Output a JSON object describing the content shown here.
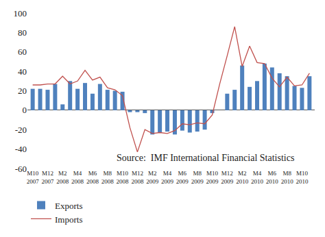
{
  "chart_data": {
    "type": "bar",
    "categories": [
      "M10 2007",
      null,
      "M12 2007",
      null,
      "M2 2008",
      null,
      "M4 2008",
      null,
      "M6 2008",
      null,
      "M8 2008",
      null,
      "M10 2008",
      null,
      "M12 2008",
      null,
      "M2 2009",
      null,
      "M4 2009",
      null,
      "M6 2009",
      null,
      "M8 2009",
      null,
      "M10 2009",
      null,
      "M12 2009",
      null,
      "M2 2010",
      null,
      "M4 2010",
      null,
      "M6 2010",
      null,
      "M8 2010",
      null,
      "M10 2010",
      null
    ],
    "series": [
      {
        "name": "Exports",
        "type": "bar",
        "color": "#4f81bd",
        "values": [
          22,
          22,
          21,
          27,
          6,
          30,
          22,
          28,
          17,
          27,
          21,
          20,
          19,
          -2,
          -2,
          -3,
          -25,
          -23,
          -22,
          -25,
          -21,
          -23,
          -22,
          -20,
          -3,
          0,
          17,
          21,
          46,
          24,
          30,
          48,
          44,
          38,
          35,
          25,
          23,
          35
        ]
      },
      {
        "name": "Imports",
        "type": "line",
        "color": "#c0504d",
        "line_style": "solid",
        "values": [
          26,
          26,
          27,
          27,
          35,
          27,
          30,
          41,
          31,
          34,
          23,
          21,
          15,
          -18,
          -43,
          -20,
          -24,
          -23,
          -24,
          -21,
          -14,
          -15,
          -13,
          -14,
          -5,
          27,
          56,
          86,
          45,
          66,
          49,
          48,
          33,
          24,
          34,
          25,
          26,
          38
        ]
      }
    ],
    "ylim": [
      -60,
      100
    ],
    "yticks": [
      -60,
      -40,
      -20,
      0,
      20,
      40,
      60,
      80,
      100
    ],
    "grid": false,
    "legend": "bottom left",
    "annotations": [
      "Source:  IMF International Financial Statistics"
    ]
  }
}
